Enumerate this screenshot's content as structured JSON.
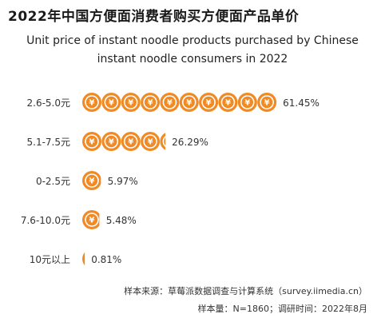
{
  "title": "2022年中国方便面消费者购买方便面产品单价",
  "subtitle_line1": "Unit price of instant noodle products purchased by Chinese",
  "subtitle_line2": "instant noodle consumers in 2022",
  "source": "样本来源：草莓派数据调查与计算系统（survey.iimedia.cn）",
  "sample": "样本量：N=1860；调研时间：2022年8月",
  "icon": "yuan-coin-icon",
  "colors": {
    "accent": "#f08a24",
    "coin_inner": "#ffffff"
  },
  "chart_data": {
    "type": "bar",
    "orientation": "horizontal",
    "categories": [
      "2.6-5.0元",
      "5.1-7.5元",
      "0-2.5元",
      "7.6-10.0元",
      "10元以上"
    ],
    "values": [
      61.45,
      26.29,
      5.97,
      5.48,
      0.81
    ],
    "value_labels": [
      "61.45%",
      "26.29%",
      "5.97%",
      "5.48%",
      "0.81%"
    ],
    "unit": "%",
    "xlabel": "",
    "ylabel": ""
  }
}
